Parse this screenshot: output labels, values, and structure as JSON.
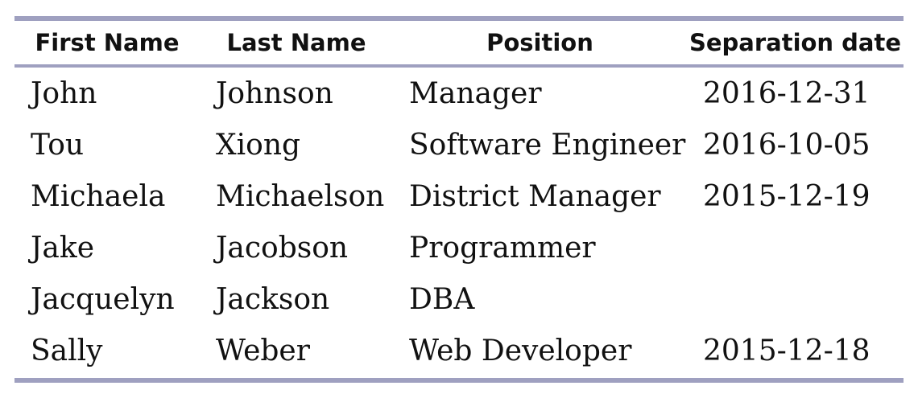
{
  "table": {
    "headers": [
      "First Name",
      "Last Name",
      "Position",
      "Separation date"
    ],
    "rows": [
      [
        "John",
        "Johnson",
        "Manager",
        "2016-12-31"
      ],
      [
        "Tou",
        "Xiong",
        "Software Engineer",
        "2016-10-05"
      ],
      [
        "Michaela",
        "Michaelson",
        "District Manager",
        "2015-12-19"
      ],
      [
        "Jake",
        "Jacobson",
        "Programmer",
        ""
      ],
      [
        "Jacquelyn",
        "Jackson",
        "DBA",
        ""
      ],
      [
        "Sally",
        "Weber",
        "Web Developer",
        "2015-12-18"
      ]
    ],
    "rule_color": "#9fa0c0"
  }
}
